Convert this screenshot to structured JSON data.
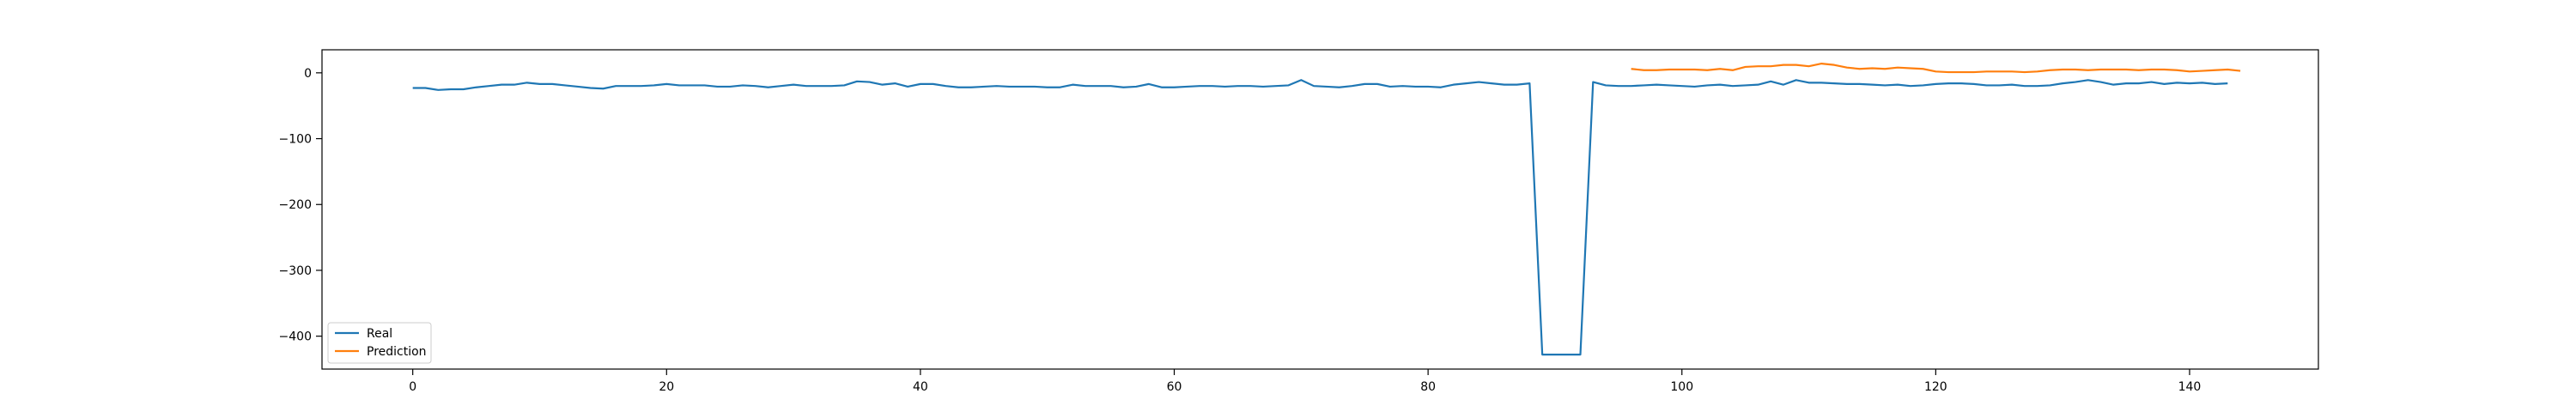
{
  "chart_data": {
    "type": "line",
    "title": "",
    "xlabel": "",
    "ylabel": "",
    "xlim": [
      -7.15,
      150.15
    ],
    "ylim": [
      -450,
      35
    ],
    "xticks": [
      0,
      20,
      40,
      60,
      80,
      100,
      120,
      140
    ],
    "yticks": [
      0,
      -100,
      -200,
      -300,
      -400
    ],
    "tick_labels": {
      "x": [
        "0",
        "20",
        "40",
        "60",
        "80",
        "100",
        "120",
        "140"
      ],
      "y": [
        "0",
        "−100",
        "−200",
        "−300",
        "−400"
      ]
    },
    "grid": false,
    "legend_position": "lower-left",
    "series": [
      {
        "name": "Real",
        "color": "#1f77b4",
        "x_start": 0,
        "values": [
          -23,
          -23,
          -26,
          -25,
          -25,
          -22,
          -20,
          -18,
          -18,
          -15,
          -17,
          -17,
          -19,
          -21,
          -23,
          -24,
          -20,
          -20,
          -20,
          -19,
          -17,
          -19,
          -19,
          -19,
          -21,
          -21,
          -19,
          -20,
          -22,
          -20,
          -18,
          -20,
          -20,
          -20,
          -19,
          -13,
          -14,
          -18,
          -16,
          -21,
          -17,
          -17,
          -20,
          -22,
          -22,
          -21,
          -20,
          -21,
          -21,
          -21,
          -22,
          -22,
          -18,
          -20,
          -20,
          -20,
          -22,
          -21,
          -17,
          -22,
          -22,
          -21,
          -20,
          -20,
          -21,
          -20,
          -20,
          -21,
          -20,
          -19,
          -11,
          -20,
          -21,
          -22,
          -20,
          -17,
          -17,
          -21,
          -20,
          -21,
          -21,
          -22,
          -18,
          -16,
          -14,
          -16,
          -18,
          -18,
          -16,
          -428,
          -428,
          -428,
          -428,
          -14,
          -19,
          -20,
          -20,
          -19,
          -18,
          -19,
          -20,
          -21,
          -19,
          -18,
          -20,
          -19,
          -18,
          -13,
          -18,
          -11,
          -15,
          -15,
          -16,
          -17,
          -17,
          -18,
          -19,
          -18,
          -20,
          -19,
          -17,
          -16,
          -16,
          -17,
          -19,
          -19,
          -18,
          -20,
          -20,
          -19,
          -16,
          -14,
          -11,
          -14,
          -18,
          -16,
          -16,
          -14,
          -17,
          -15,
          -16,
          -15,
          -17,
          -16
        ]
      },
      {
        "name": "Prediction",
        "color": "#ff7f0e",
        "x_start": 96,
        "values": [
          6,
          4,
          4,
          5,
          5,
          5,
          4,
          6,
          4,
          9,
          10,
          10,
          12,
          12,
          10,
          14,
          12,
          8,
          6,
          7,
          6,
          8,
          7,
          6,
          2,
          1,
          1,
          1,
          2,
          2,
          2,
          1,
          2,
          4,
          5,
          5,
          4,
          5,
          5,
          5,
          4,
          5,
          5,
          4,
          2,
          3,
          4,
          5,
          3
        ]
      }
    ]
  }
}
